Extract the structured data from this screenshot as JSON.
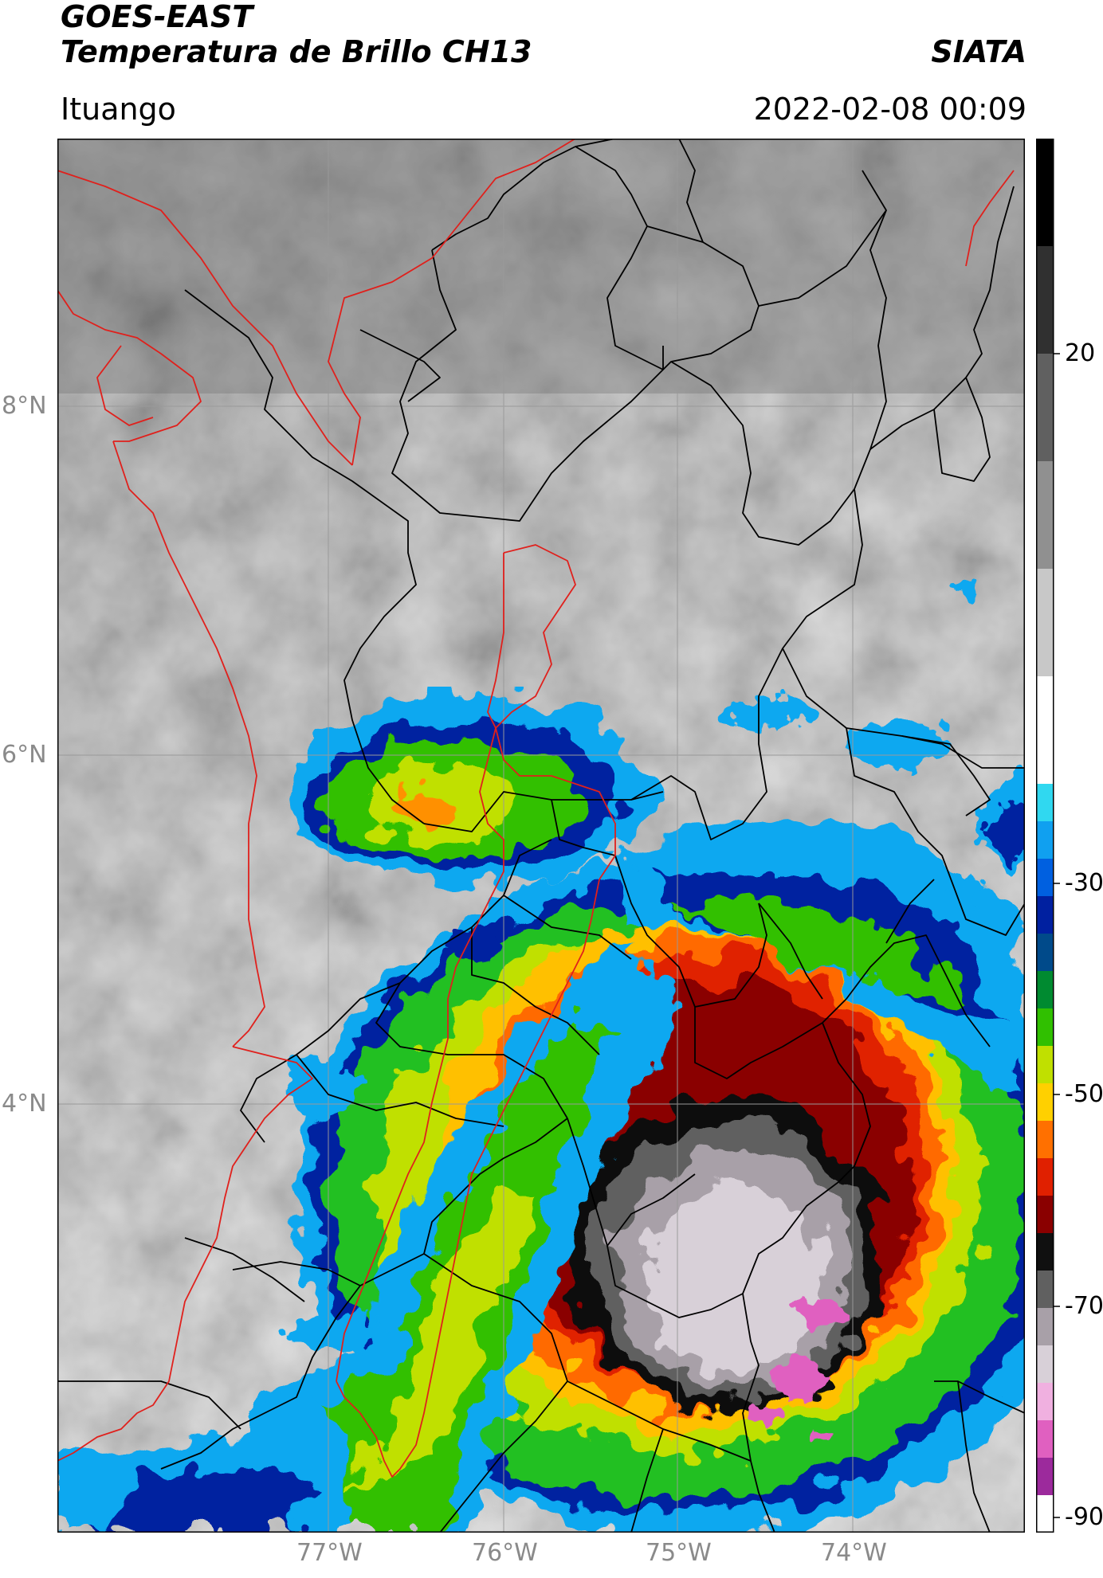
{
  "header": {
    "line1": "GOES-EAST",
    "line2": "Temperatura de Brillo CH13",
    "org": "SIATA",
    "region": "Ituango",
    "timestamp": "2022-02-08 00:09"
  },
  "map": {
    "lon_ticks": [
      "77°W",
      "76°W",
      "75°W",
      "74°W"
    ],
    "lat_ticks": [
      "8°N",
      "6°N",
      "4°N"
    ],
    "colors": {
      "boundary_black": "#000000",
      "boundary_red": "#e0201c",
      "gridline": "#9a9a9a"
    }
  },
  "colorbar": {
    "ticks": [
      "20",
      "-30",
      "-50",
      "-70",
      "-90"
    ],
    "stops": [
      "#ffffff",
      "#9c2a9c",
      "#e060c0",
      "#f0b0e0",
      "#d8d0d8",
      "#a8a0a8",
      "#606060",
      "#101010",
      "#8a0000",
      "#e02000",
      "#ff7000",
      "#ffd000",
      "#c0e000",
      "#30c000",
      "#008a30",
      "#004a8a",
      "#0020a0",
      "#0060e0",
      "#10a0f0",
      "#30d8f0",
      "#ffffff",
      "#c8c8c8",
      "#909090",
      "#606060",
      "#303030",
      "#000000"
    ]
  }
}
